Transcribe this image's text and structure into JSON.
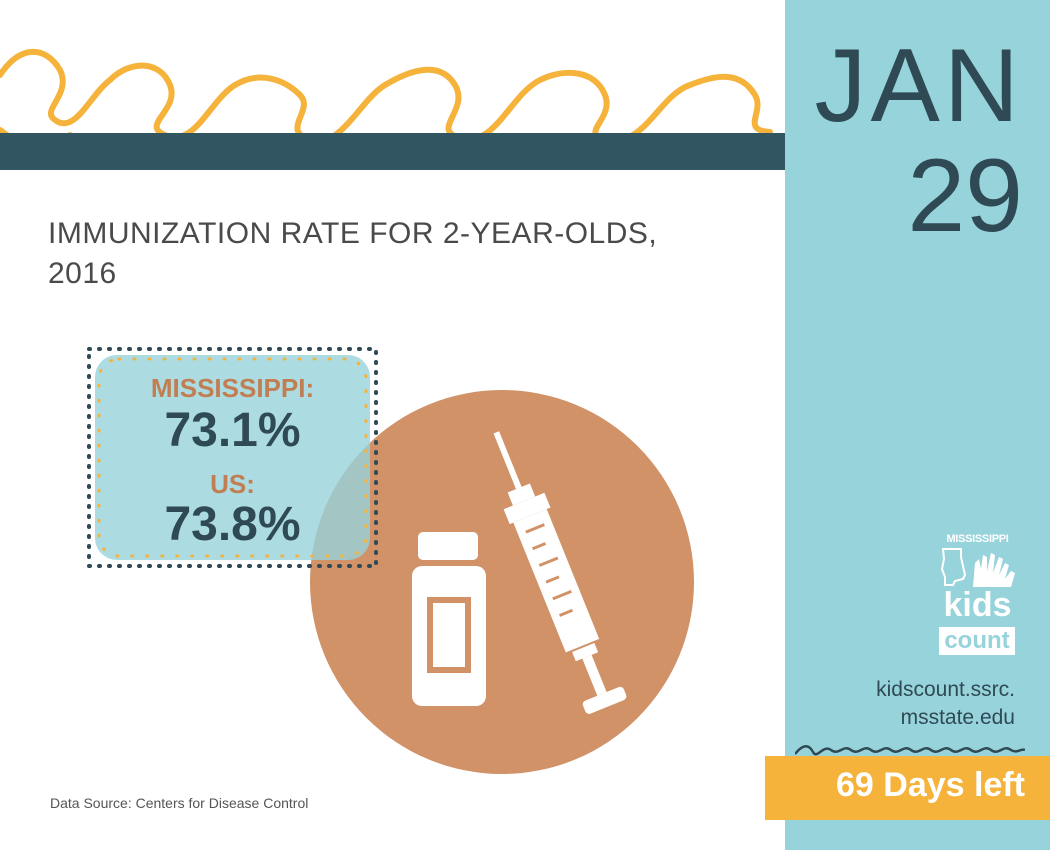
{
  "header": {
    "title_line1": "IMMUNIZATION RATE FOR 2-YEAR-OLDS,",
    "title_line2": "2016"
  },
  "stats": {
    "mississippi_label": "MISSISSIPPI:",
    "mississippi_value": "73.1%",
    "us_label": "US:",
    "us_value": "73.8%"
  },
  "source": "Data Source: Centers for Disease Control",
  "calendar": {
    "month": "JAN",
    "day": "29",
    "days_left": "69 Days left"
  },
  "logo": {
    "state": "MISSISSIPPI",
    "word1": "kids",
    "word2": "count"
  },
  "website": {
    "line1": "kidscount.ssrc.",
    "line2": "msstate.edu"
  },
  "colors": {
    "dark_teal": "#325661",
    "light_teal": "#97d3db",
    "orange": "#f5b33c",
    "copper": "#d19268",
    "label_copper": "#c17e52"
  },
  "icons": [
    "vaccine-vial-icon",
    "syringe-icon",
    "mississippi-state-icon",
    "raised-hands-icon"
  ]
}
